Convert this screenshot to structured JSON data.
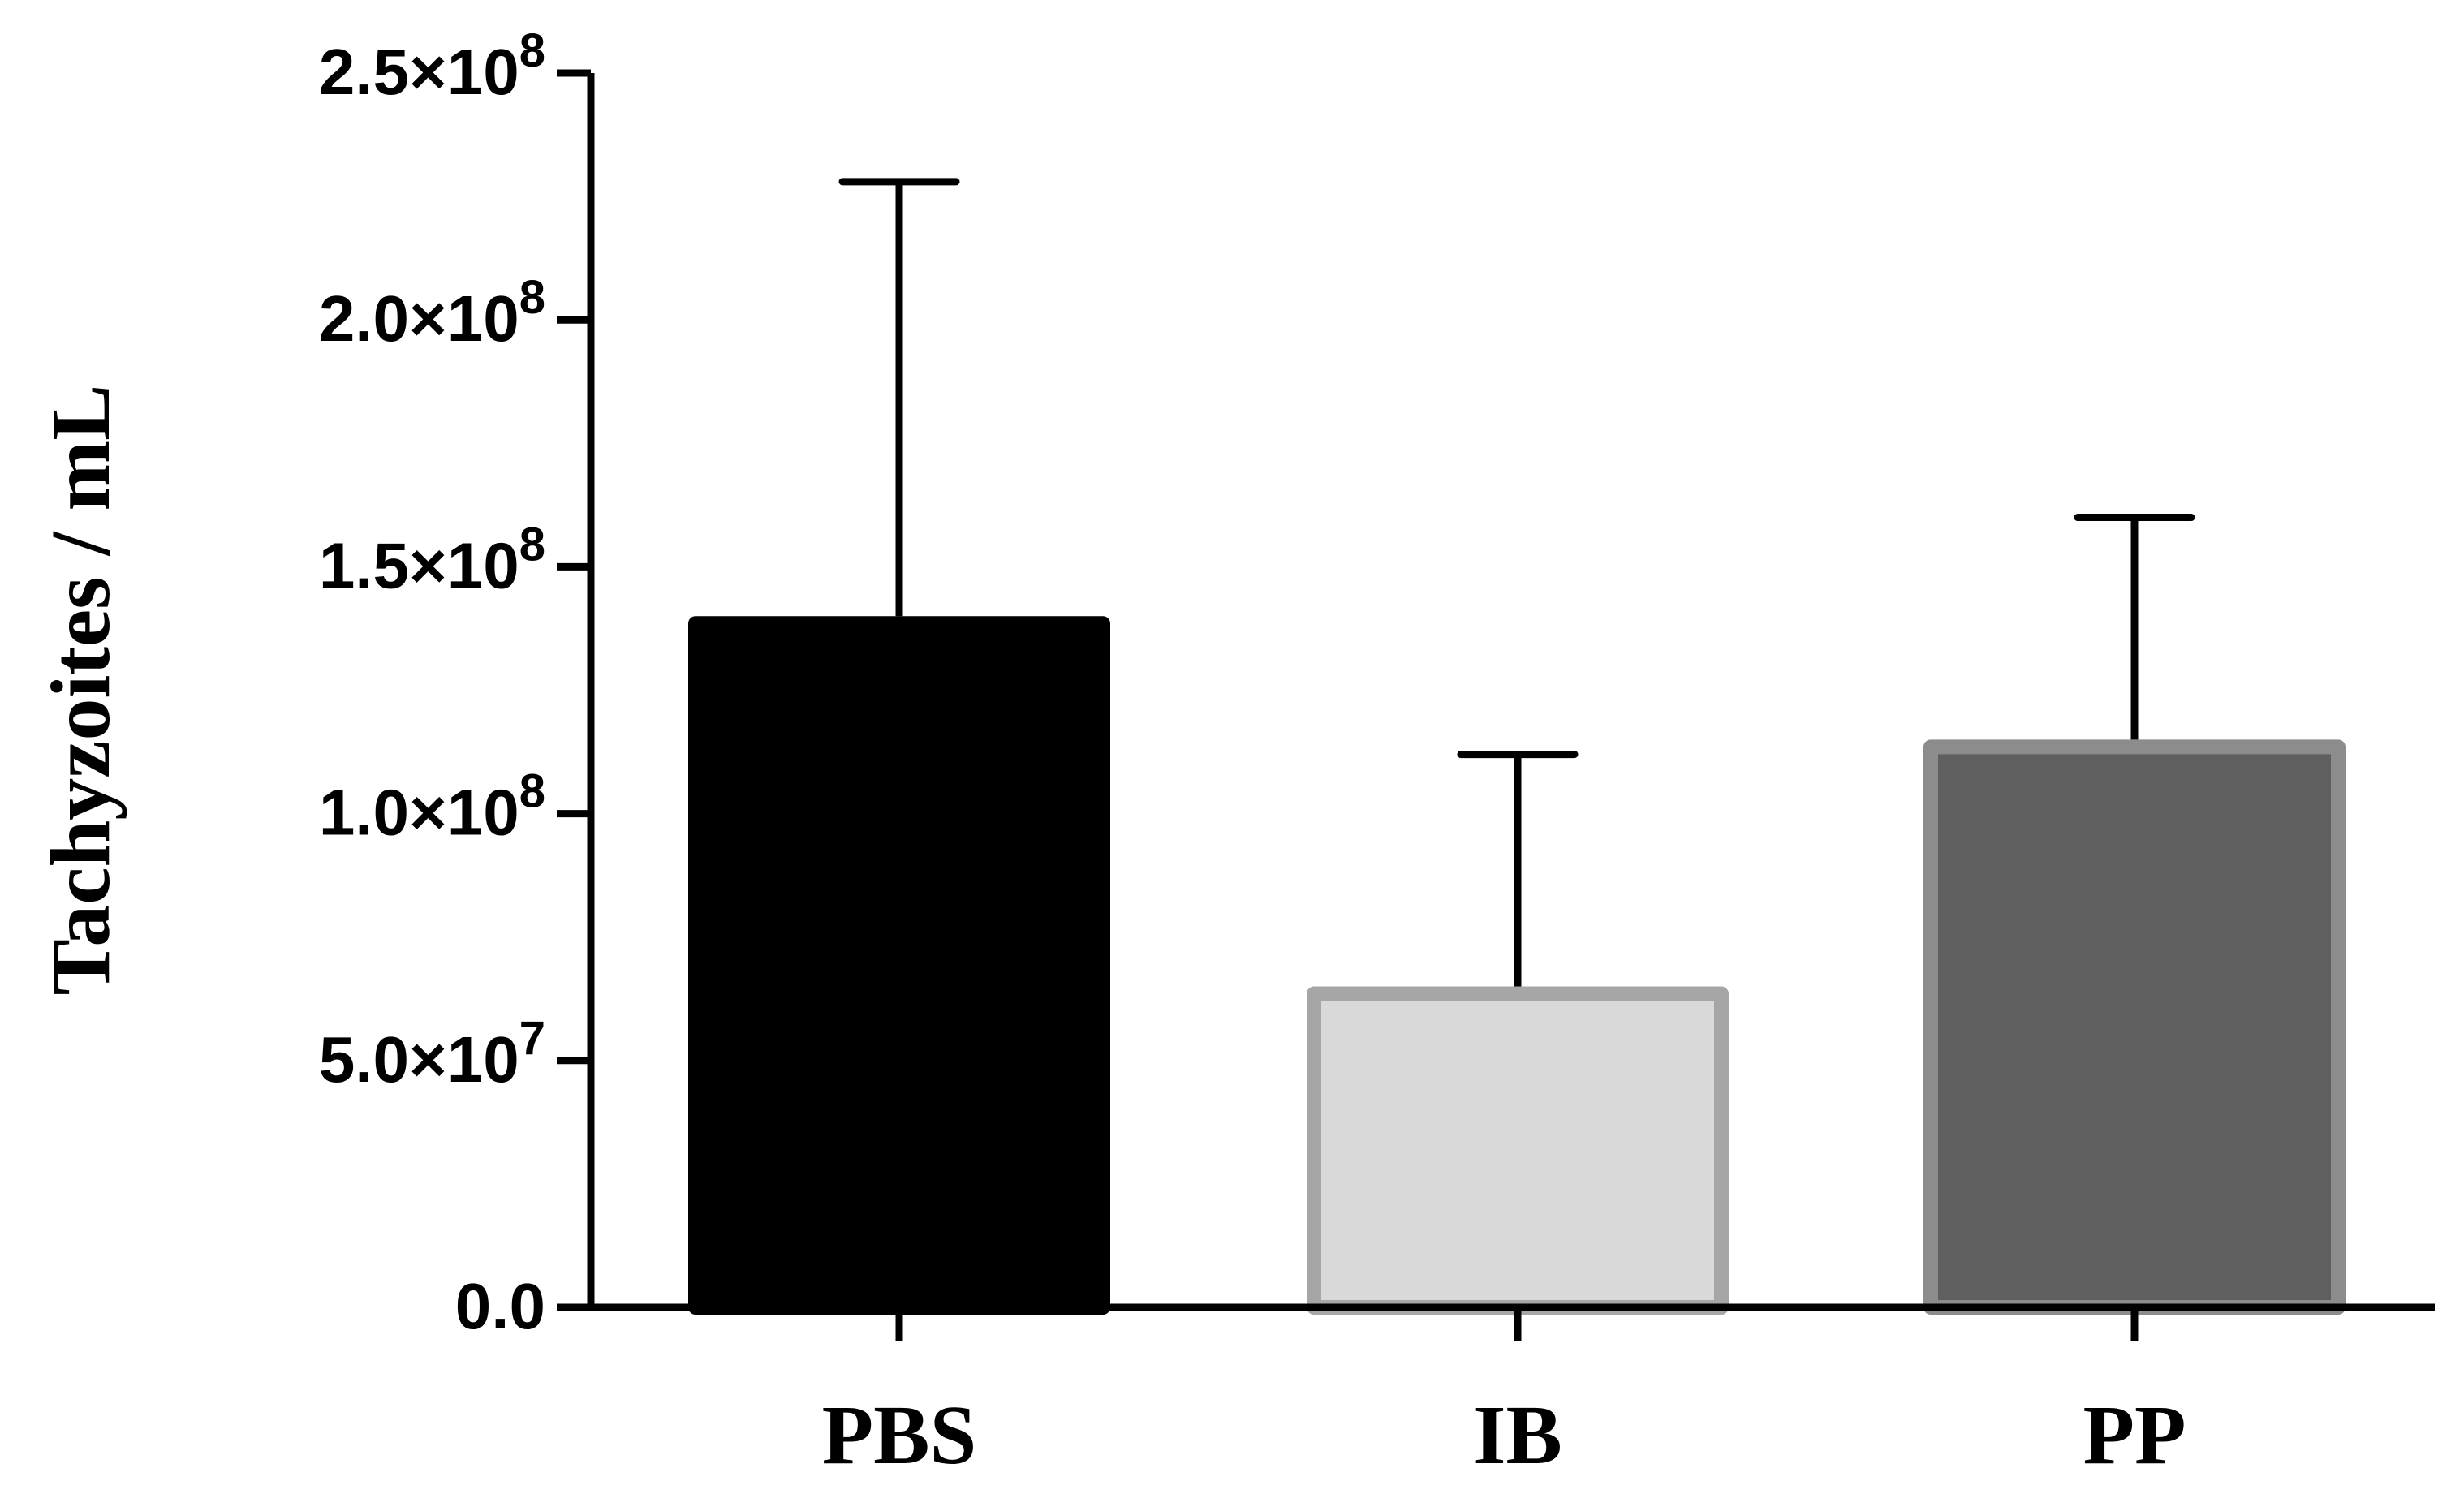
{
  "chart_data": {
    "type": "bar",
    "title": "",
    "xlabel": "",
    "ylabel": "Tachyzoites / mL",
    "ylim": [
      0,
      250000000
    ],
    "yticks": [
      {
        "value": 0,
        "mantissa": "0.0",
        "exponent": ""
      },
      {
        "value": 50000000,
        "mantissa": "5.0×10",
        "exponent": "7"
      },
      {
        "value": 100000000,
        "mantissa": "1.0×10",
        "exponent": "8"
      },
      {
        "value": 150000000,
        "mantissa": "1.5×10",
        "exponent": "8"
      },
      {
        "value": 200000000,
        "mantissa": "2.0×10",
        "exponent": "8"
      },
      {
        "value": 250000000,
        "mantissa": "2.5×10",
        "exponent": "8"
      }
    ],
    "grid": false,
    "legend": "none",
    "categories": [
      "PBS",
      "IB",
      "PP"
    ],
    "values": [
      140000000,
      65000000,
      115000000
    ],
    "error_upper": [
      228000000,
      112000000,
      160000000
    ],
    "fill_colors": [
      "#000000",
      "#d9d9d9",
      "#5f5f5f"
    ],
    "stroke_colors": [
      "#000000",
      "#a6a6a6",
      "#8c8c8c"
    ]
  }
}
